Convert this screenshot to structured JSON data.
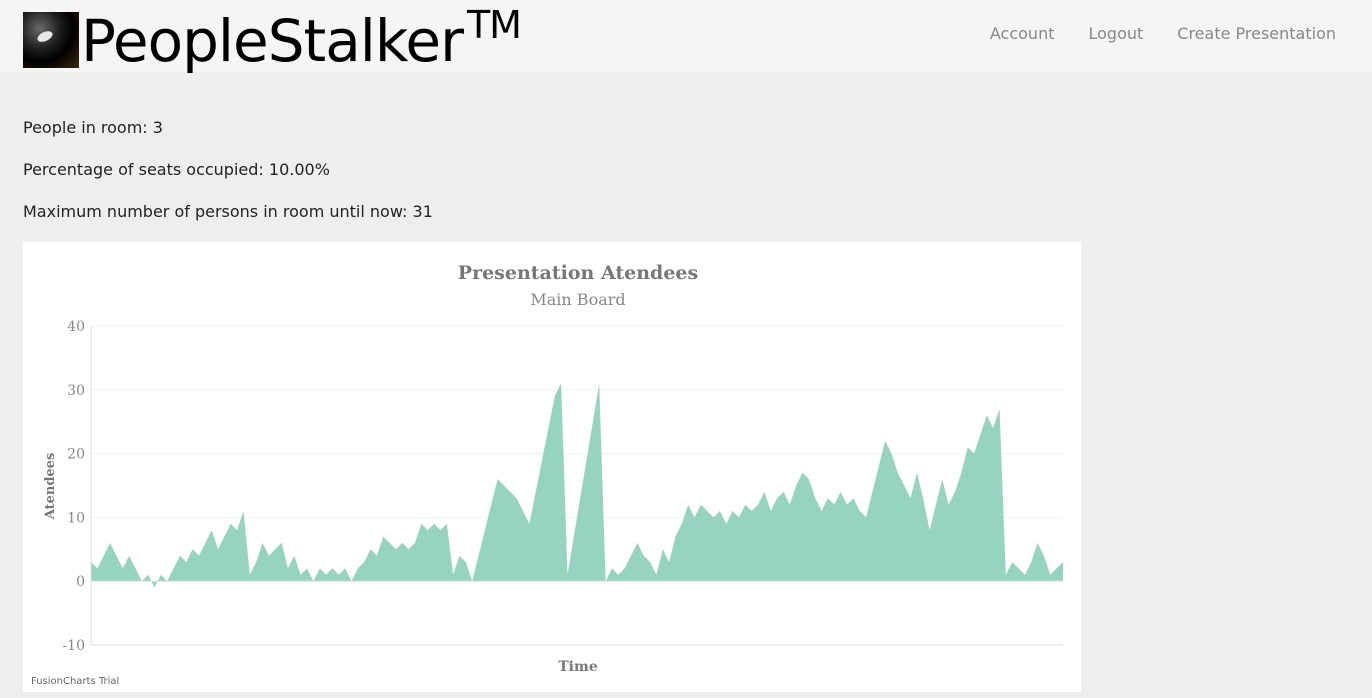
{
  "brand": {
    "name": "PeopleStalker",
    "tm": "TM"
  },
  "nav": [
    {
      "label": "Account"
    },
    {
      "label": "Logout"
    },
    {
      "label": "Create Presentation"
    }
  ],
  "stats": {
    "people_in_room": "People in room: 3",
    "percentage_occupied": "Percentage of seats occupied: 10.00%",
    "max_persons": "Maximum number of persons in room until now: 31"
  },
  "chart_footer": "FusionCharts Trial",
  "chart_data": {
    "type": "area",
    "title": "Presentation Atendees",
    "subtitle": "Main Board",
    "xlabel": "Time",
    "ylabel": "Atendees",
    "ylim": [
      -10,
      40
    ],
    "yticks": [
      40,
      30,
      20,
      10,
      0,
      -10
    ],
    "grid": true,
    "color": "#97d3c1",
    "values": [
      3,
      2,
      4,
      6,
      4,
      2,
      4,
      2,
      0,
      1,
      -1,
      1,
      0,
      2,
      4,
      3,
      5,
      4,
      6,
      8,
      5,
      7,
      9,
      8,
      11,
      1,
      3,
      6,
      4,
      5,
      6,
      2,
      4,
      1,
      2,
      0,
      2,
      1,
      2,
      1,
      2,
      0,
      2,
      3,
      5,
      4,
      7,
      6,
      5,
      6,
      5,
      6,
      9,
      8,
      9,
      8,
      9,
      1,
      4,
      3,
      0,
      4,
      8,
      12,
      16,
      15,
      14,
      13,
      11,
      9,
      14,
      19,
      24,
      29,
      31,
      1,
      7,
      13,
      19,
      25,
      31,
      0,
      2,
      1,
      2,
      4,
      6,
      4,
      3,
      1,
      5,
      3,
      7,
      9,
      12,
      10,
      12,
      11,
      10,
      11,
      9,
      11,
      10,
      12,
      11,
      12,
      14,
      11,
      13,
      14,
      12,
      15,
      17,
      16,
      13,
      11,
      13,
      12,
      14,
      12,
      13,
      11,
      10,
      14,
      18,
      22,
      20,
      17,
      15,
      13,
      17,
      13,
      8,
      12,
      16,
      12,
      14,
      17,
      21,
      20,
      23,
      26,
      24,
      27,
      1,
      3,
      2,
      1,
      3,
      6,
      4,
      1,
      2,
      3
    ]
  }
}
